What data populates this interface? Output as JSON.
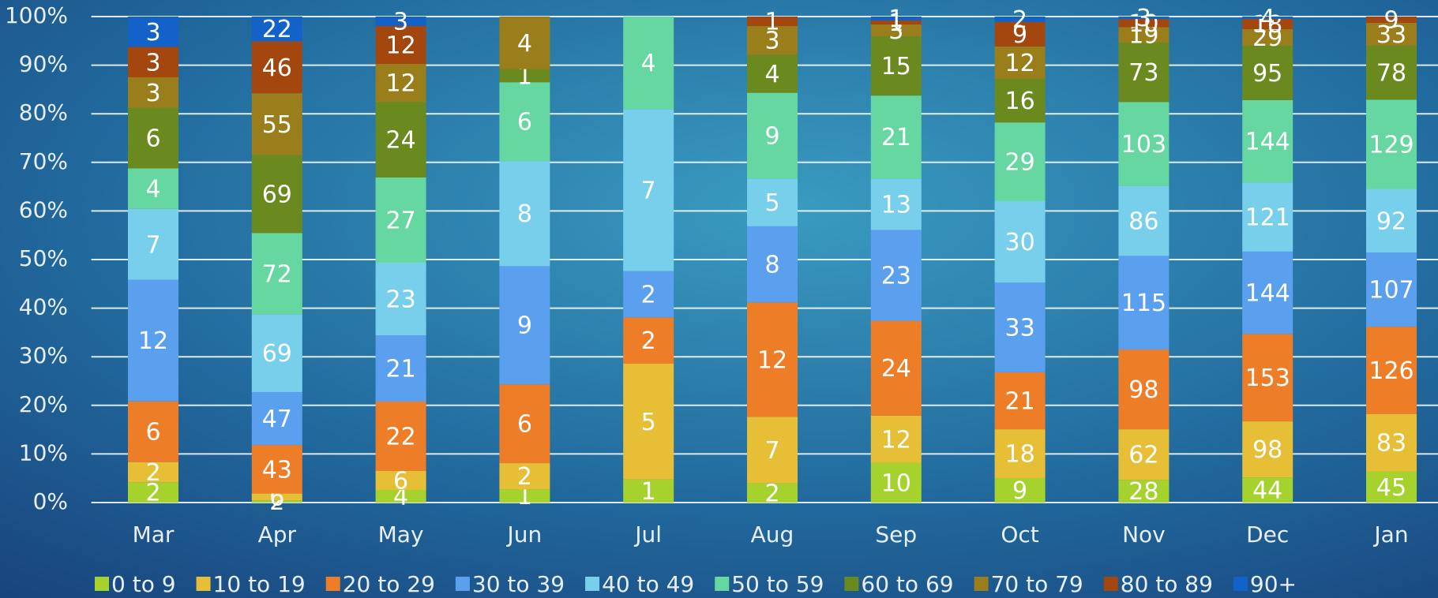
{
  "chart_data": {
    "type": "stacked_bar_100",
    "categories": [
      "Mar",
      "Apr",
      "May",
      "Jun",
      "Jul",
      "Aug",
      "Sep",
      "Oct",
      "Nov",
      "Dec",
      "Jan"
    ],
    "series": [
      {
        "name": "0 to 9",
        "color": "#a6d22e",
        "values": [
          2,
          2,
          4,
          1,
          1,
          2,
          10,
          9,
          28,
          44,
          45
        ]
      },
      {
        "name": "10 to 19",
        "color": "#e6bf36",
        "values": [
          2,
          6,
          6,
          2,
          5,
          7,
          12,
          18,
          62,
          98,
          83
        ]
      },
      {
        "name": "20 to 29",
        "color": "#ed7d27",
        "values": [
          6,
          43,
          22,
          6,
          2,
          12,
          24,
          21,
          98,
          153,
          126
        ]
      },
      {
        "name": "30 to 39",
        "color": "#5aa0ef",
        "values": [
          12,
          47,
          21,
          9,
          2,
          8,
          23,
          33,
          115,
          144,
          107
        ]
      },
      {
        "name": "40 to 49",
        "color": "#77cfec",
        "values": [
          7,
          69,
          23,
          8,
          7,
          5,
          13,
          30,
          86,
          121,
          92
        ]
      },
      {
        "name": "50 to 59",
        "color": "#66d7a1",
        "values": [
          4,
          72,
          27,
          6,
          4,
          9,
          21,
          29,
          103,
          144,
          129
        ]
      },
      {
        "name": "60 to 69",
        "color": "#6a8a1f",
        "values": [
          6,
          69,
          24,
          1,
          null,
          4,
          15,
          16,
          73,
          95,
          78
        ]
      },
      {
        "name": "70 to 79",
        "color": "#9a7e1b",
        "values": [
          3,
          55,
          12,
          4,
          null,
          3,
          3,
          12,
          19,
          29,
          33
        ]
      },
      {
        "name": "80 to 89",
        "color": "#a4470f",
        "values": [
          3,
          46,
          12,
          null,
          null,
          1,
          1,
          9,
          10,
          18,
          9
        ]
      },
      {
        "name": "90+",
        "color": "#1262c9",
        "values": [
          3,
          22,
          3,
          null,
          null,
          null,
          1,
          2,
          3,
          4,
          null
        ]
      }
    ],
    "ylim": [
      0,
      100
    ],
    "yticks": [
      {
        "value": 0,
        "label": "0%"
      },
      {
        "value": 10,
        "label": "10%"
      },
      {
        "value": 20,
        "label": "20%"
      },
      {
        "value": 30,
        "label": "30%"
      },
      {
        "value": 40,
        "label": "40%"
      },
      {
        "value": 50,
        "label": "50%"
      },
      {
        "value": 60,
        "label": "60%"
      },
      {
        "value": 70,
        "label": "70%"
      },
      {
        "value": 80,
        "label": "80%"
      },
      {
        "value": 90,
        "label": "90%"
      },
      {
        "value": 100,
        "label": "100%"
      }
    ],
    "grid": true
  }
}
